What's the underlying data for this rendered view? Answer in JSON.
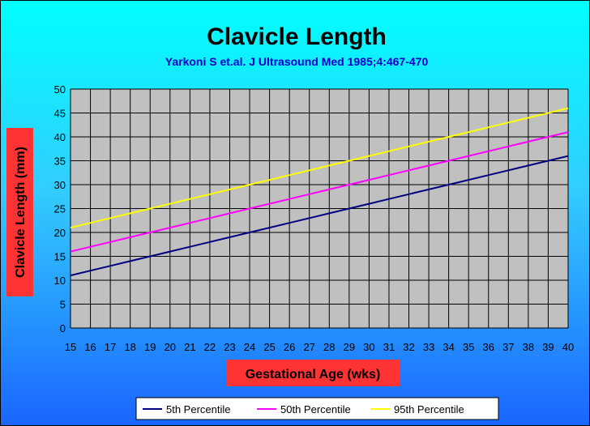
{
  "chart_data": {
    "type": "line",
    "title": "Clavicle Length",
    "subtitle": "Yarkoni S et.al. J Ultrasound Med 1985;4:467-470",
    "xlabel": "Gestational Age (wks)",
    "ylabel": "Clavicle Length (mm)",
    "x": [
      15,
      16,
      17,
      18,
      19,
      20,
      21,
      22,
      23,
      24,
      25,
      26,
      27,
      28,
      29,
      30,
      31,
      32,
      33,
      34,
      35,
      36,
      37,
      38,
      39,
      40
    ],
    "ylim": [
      0,
      50
    ],
    "yticks": [
      0,
      5,
      10,
      15,
      20,
      25,
      30,
      35,
      40,
      45,
      50
    ],
    "grid": true,
    "legend_position": "bottom",
    "series": [
      {
        "name": "5th Percentile",
        "color": "#000080",
        "values": [
          11,
          12,
          13,
          14,
          15,
          16,
          17,
          18,
          19,
          20,
          21,
          22,
          23,
          24,
          25,
          26,
          27,
          28,
          29,
          30,
          31,
          32,
          33,
          34,
          35,
          36
        ]
      },
      {
        "name": "50th Percentile",
        "color": "#ff00ff",
        "values": [
          16,
          17,
          18,
          19,
          20,
          21,
          22,
          23,
          24,
          25,
          26,
          27,
          28,
          29,
          30,
          31,
          32,
          33,
          34,
          35,
          36,
          37,
          38,
          39,
          40,
          41
        ]
      },
      {
        "name": "95th Percentile",
        "color": "#ffff00",
        "values": [
          21,
          22,
          23,
          24,
          25,
          26,
          27,
          28,
          29,
          30,
          31,
          32,
          33,
          34,
          35,
          36,
          37,
          38,
          39,
          40,
          41,
          42,
          43,
          44,
          45,
          46
        ]
      }
    ]
  }
}
